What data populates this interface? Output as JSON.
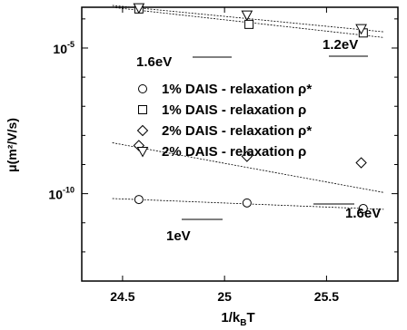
{
  "chart_data": {
    "type": "scatter",
    "xlabel_main": "1/k",
    "xlabel_sub": "B",
    "xlabel_tail": "T",
    "ylabel": "μ(m²/V/s)",
    "xlim": [
      24.3,
      25.85
    ],
    "ylim_log10": [
      -13,
      -3.6
    ],
    "scale_y": "log",
    "x_ticks": [
      {
        "value": 24.5,
        "label": "24.5"
      },
      {
        "value": 25,
        "label": "25"
      },
      {
        "value": 25.5,
        "label": "25.5"
      }
    ],
    "y_ticks": [
      {
        "exp": -5,
        "base": "10",
        "exponent": "-5"
      },
      {
        "exp": -10,
        "base": "10",
        "exponent": "-10"
      }
    ],
    "series": [
      {
        "name": "1% DAIS - relaxation ρ*",
        "marker": "circle",
        "points": [
          [
            24.58,
            6.3e-11
          ],
          [
            25.11,
            4.8e-11
          ],
          [
            25.68,
            3.1e-11
          ]
        ],
        "fit": [
          [
            24.45,
            6.8e-11
          ],
          [
            25.78,
            2.9e-11
          ]
        ]
      },
      {
        "name": "1% DAIS - relaxation ρ",
        "marker": "square",
        "points": [
          [
            24.58,
            0.00022
          ],
          [
            25.12,
            6.5e-05
          ],
          [
            25.68,
            3.3e-05
          ]
        ],
        "fit": [
          [
            24.45,
            0.00025
          ],
          [
            25.78,
            2.3e-05
          ]
        ]
      },
      {
        "name": "2% DAIS - relaxation ρ*",
        "marker": "diamond",
        "points": [
          [
            24.58,
            4.5e-09
          ],
          [
            25.11,
            1.9e-09
          ],
          [
            25.67,
            1.15e-09
          ]
        ],
        "fit": [
          [
            24.45,
            5.6e-09
          ],
          [
            25.78,
            1.1e-10
          ]
        ]
      },
      {
        "name": "2% DAIS - relaxation ρ",
        "marker": "triangle-down",
        "points": [
          [
            24.58,
            0.00024
          ],
          [
            25.11,
            0.000135
          ],
          [
            25.67,
            4.6e-05
          ]
        ],
        "fit": [
          [
            24.45,
            0.00029
          ],
          [
            25.78,
            3.6e-05
          ]
        ]
      }
    ],
    "annotations": [
      {
        "text": "1.2eV",
        "anchor_series": 3
      },
      {
        "text": "1.6eV",
        "anchor_series": 1
      },
      {
        "text": "1.6eV",
        "anchor_series": 2
      },
      {
        "text": "1eV",
        "anchor_series": 0
      }
    ],
    "legend_position": "center"
  }
}
